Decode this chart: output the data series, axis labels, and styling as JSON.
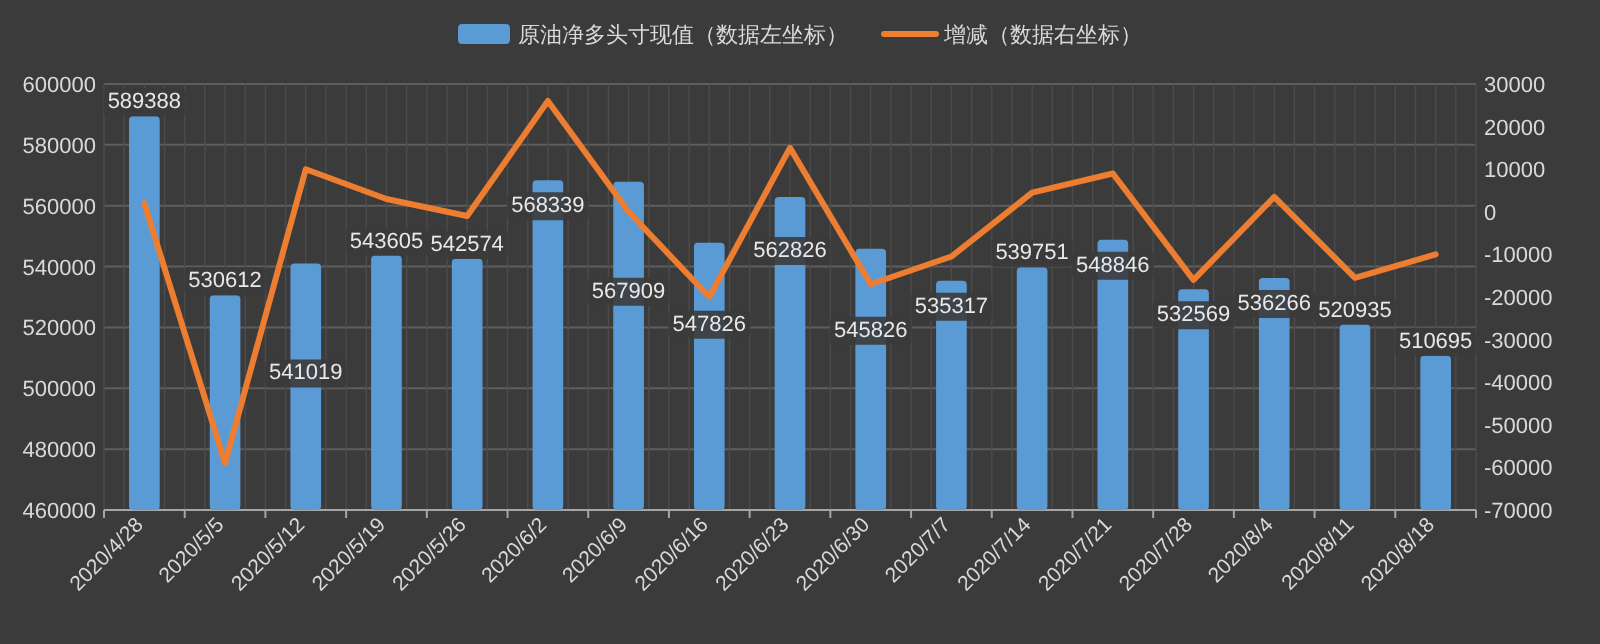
{
  "chart_data": {
    "type": "bar",
    "categories": [
      "2020/4/28",
      "2020/5/5",
      "2020/5/12",
      "2020/5/19",
      "2020/5/26",
      "2020/6/2",
      "2020/6/9",
      "2020/6/16",
      "2020/6/23",
      "2020/6/30",
      "2020/7/7",
      "2020/7/14",
      "2020/7/21",
      "2020/7/28",
      "2020/8/4",
      "2020/8/11",
      "2020/8/18"
    ],
    "series": [
      {
        "name": "原油净多头寸现值（数据左坐标）",
        "type": "bar",
        "axis": "y",
        "color": "#5b9bd5",
        "values": [
          589388,
          530612,
          541019,
          543605,
          542574,
          568339,
          567909,
          547826,
          562826,
          545826,
          535317,
          539751,
          548846,
          532569,
          536266,
          520935,
          510695
        ],
        "value_labels": [
          "589388",
          "530612",
          "541019",
          "543605",
          "542574",
          "568339",
          "567909",
          "547826",
          "562826",
          "545826",
          "535317",
          "539751",
          "548846",
          "532569",
          "536266",
          "520935",
          "510695"
        ]
      },
      {
        "name": "增减（数据右坐标）",
        "type": "line",
        "axis": "y2",
        "color": "#ed7d31",
        "values": [
          2000,
          -59000,
          10000,
          3000,
          -1000,
          26000,
          0,
          -20000,
          15000,
          -17000,
          -10500,
          4500,
          9000,
          -16000,
          3500,
          -15500,
          -10000
        ]
      }
    ],
    "ylim": [
      460000,
      600000
    ],
    "yticks": [
      460000,
      480000,
      500000,
      520000,
      540000,
      560000,
      580000,
      600000
    ],
    "y2lim": [
      -70000,
      30000
    ],
    "y2ticks": [
      -70000,
      -60000,
      -50000,
      -40000,
      -30000,
      -20000,
      -10000,
      0,
      10000,
      20000,
      30000
    ],
    "grid": true,
    "legend": "top",
    "marker": "none",
    "line_style": "solid"
  }
}
